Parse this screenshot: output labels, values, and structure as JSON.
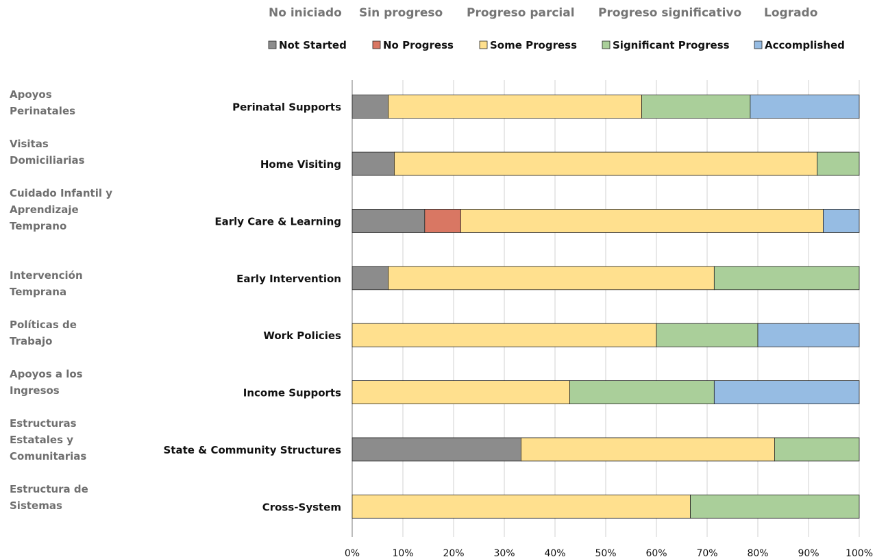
{
  "spanish_legend": {
    "items": [
      "No iniciado",
      "Sin progreso",
      "Progreso parcial",
      "Progreso significativo",
      "Logrado"
    ]
  },
  "spanish_categories": [
    "Apoyos Perinatales",
    "Visitas Domiciliarias",
    "Cuidado Infantil y Aprendizaje Temprano",
    "Intervención Temprana",
    "Políticas de Trabajo",
    "Apoyos a los Ingresos",
    "Estructuras Estatales y Comunitarias",
    "Estructura de Sistemas"
  ],
  "colors": {
    "Not Started": "#8c8c8c",
    "No Progress": "#d97763",
    "Some Progress": "#ffe08e",
    "Significant Progress": "#aacf9a",
    "Accomplished": "#96bce3"
  },
  "chart_data": {
    "type": "bar",
    "orientation": "horizontal",
    "stacked": true,
    "percent": true,
    "title": "",
    "xlabel": "",
    "ylabel": "",
    "xlim": [
      0,
      100
    ],
    "ticks": [
      "0%",
      "10%",
      "20%",
      "30%",
      "40%",
      "50%",
      "60%",
      "70%",
      "80%",
      "90%",
      "100%"
    ],
    "grid": "vertical",
    "legend_position": "top",
    "categories": [
      "Perinatal Supports",
      "Home Visiting",
      "Early Care & Learning",
      "Early Intervention",
      "Work Policies",
      "Income Supports",
      "State & Community Structures",
      "Cross-System"
    ],
    "series": [
      {
        "name": "Not Started",
        "values": [
          7.1,
          8.3,
          14.3,
          7.1,
          0,
          0,
          33.3,
          0
        ]
      },
      {
        "name": "No Progress",
        "values": [
          0,
          0,
          7.1,
          0,
          0,
          0,
          0,
          0
        ]
      },
      {
        "name": "Some Progress",
        "values": [
          50.0,
          83.4,
          71.5,
          64.3,
          60.0,
          42.9,
          50.0,
          66.7
        ]
      },
      {
        "name": "Significant Progress",
        "values": [
          21.4,
          8.3,
          0,
          28.6,
          20.0,
          28.5,
          16.7,
          33.3
        ]
      },
      {
        "name": "Accomplished",
        "values": [
          21.5,
          0,
          7.1,
          0,
          20.0,
          28.6,
          0,
          0
        ]
      }
    ]
  }
}
